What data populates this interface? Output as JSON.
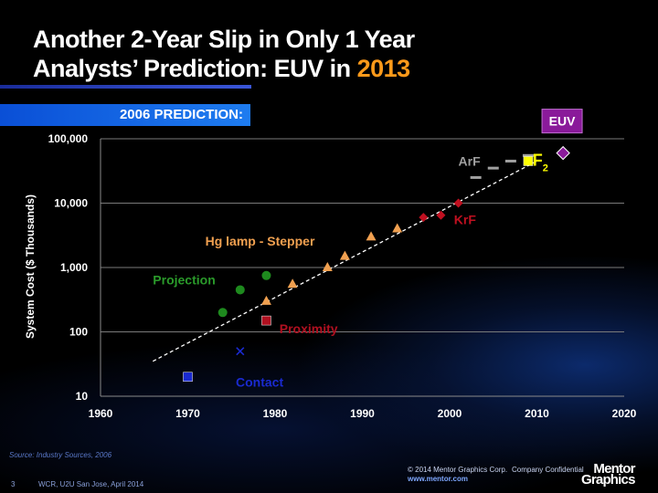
{
  "title": {
    "line1": "Another 2-Year Slip in Only 1 Year",
    "line2_prefix": "Analysts’ Prediction:  EUV in ",
    "line2_highlight": "2013"
  },
  "banner": "2006 PREDICTION:",
  "footer": {
    "source": "Source:  Industry Sources, 2006",
    "page_number": "3",
    "event": "WCR, U2U San Jose, April 2014",
    "copyright": "© 2014 Mentor Graphics Corp.",
    "confidential": "Company Confidential",
    "website": "www.mentor.com",
    "logo_line1": "Mentor",
    "logo_line2": "Graphics"
  },
  "colors": {
    "accent": "#ff9a1a",
    "projection": "#1e8a1e",
    "proximity": "#b01020",
    "contact": "#1a2ad0",
    "hg_lamp": "#f0a050",
    "krf": "#c01020",
    "arf": "#a0a0a0",
    "f2": "#ffff00",
    "euv": "#8a1a9a"
  },
  "chart_data": {
    "type": "scatter",
    "title": "",
    "xlabel": "",
    "ylabel": "System Cost ($ Thousands)",
    "xlim": [
      1960,
      2020
    ],
    "ylim": [
      10,
      100000
    ],
    "y_scale": "log",
    "grid": true,
    "x_ticks": [
      "1960",
      "1970",
      "1980",
      "1990",
      "2000",
      "2010",
      "2020"
    ],
    "y_ticks": [
      "10",
      "100",
      "1,000",
      "10,000",
      "100,000"
    ],
    "trendline": {
      "x": [
        1966,
        2010
      ],
      "y": [
        35,
        45000
      ],
      "style": "dashed"
    },
    "series": [
      {
        "name": "Contact",
        "marker": "square",
        "color": "#1a2ad0",
        "points": [
          {
            "x": 1970,
            "y": 20
          }
        ]
      },
      {
        "name": "Contact",
        "marker": "x",
        "color": "#1a2ad0",
        "points": [
          {
            "x": 1976,
            "y": 50
          }
        ],
        "label": "Contact"
      },
      {
        "name": "Proximity",
        "marker": "square",
        "color": "#b01020",
        "points": [
          {
            "x": 1979,
            "y": 150
          }
        ]
      },
      {
        "name": "Projection",
        "marker": "circle",
        "color": "#1e8a1e",
        "points": [
          {
            "x": 1974,
            "y": 200
          },
          {
            "x": 1976,
            "y": 450
          },
          {
            "x": 1979,
            "y": 750
          }
        ]
      },
      {
        "name": "Hg lamp - Stepper",
        "marker": "triangle",
        "color": "#f0a050",
        "points": [
          {
            "x": 1979,
            "y": 300
          },
          {
            "x": 1982,
            "y": 550
          },
          {
            "x": 1986,
            "y": 1000
          },
          {
            "x": 1988,
            "y": 1500
          },
          {
            "x": 1991,
            "y": 3000
          },
          {
            "x": 1994,
            "y": 4000
          }
        ]
      },
      {
        "name": "KrF",
        "marker": "diamond",
        "color": "#c01020",
        "points": [
          {
            "x": 1997,
            "y": 6000
          },
          {
            "x": 1999,
            "y": 6500
          },
          {
            "x": 2001,
            "y": 10000
          }
        ]
      },
      {
        "name": "ArF",
        "marker": "dash",
        "color": "#a0a0a0",
        "points": [
          {
            "x": 2003,
            "y": 25000
          },
          {
            "x": 2005,
            "y": 35000
          },
          {
            "x": 2007,
            "y": 45000
          },
          {
            "x": 2009,
            "y": 55000
          }
        ]
      },
      {
        "name": "F2",
        "marker": "square",
        "color": "#ffff00",
        "points": [
          {
            "x": 2009,
            "y": 45000
          }
        ]
      },
      {
        "name": "EUV",
        "marker": "diamond",
        "color": "#8a1a9a",
        "points": [
          {
            "x": 2013,
            "y": 60000
          }
        ]
      }
    ],
    "annotations": [
      {
        "text": "Contact",
        "color": "#1a2ad0",
        "at": {
          "x": 1975.5,
          "y": 14
        }
      },
      {
        "text": "Proximity",
        "color": "#b01020",
        "at": {
          "x": 1980.5,
          "y": 95
        }
      },
      {
        "text": "Projection",
        "color": "#2a9a2a",
        "at": {
          "x": 1966,
          "y": 550
        }
      },
      {
        "text": "Hg lamp - Stepper",
        "color": "#f0a050",
        "at": {
          "x": 1972,
          "y": 2200
        }
      },
      {
        "text": "KrF",
        "color": "#c01020",
        "at": {
          "x": 2000.5,
          "y": 4700
        }
      },
      {
        "text": "ArF",
        "color": "#a0a0a0",
        "at": {
          "x": 2001,
          "y": 38000
        }
      },
      {
        "text": "F2",
        "color": "#ffff00",
        "at": {
          "x": 2009.5,
          "y": 38000
        }
      },
      {
        "text": "EUV",
        "color": "#ffffff",
        "at": {
          "x": 2011,
          "y": 160000
        },
        "box_color": "#8a1a9a"
      }
    ]
  }
}
